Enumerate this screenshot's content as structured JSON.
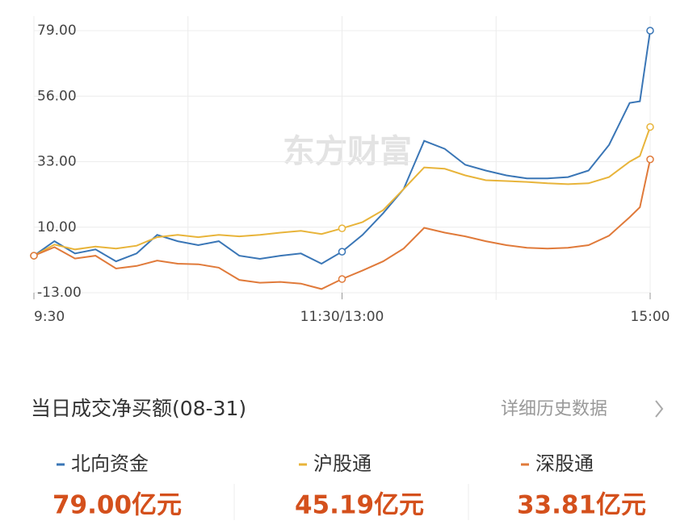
{
  "chart_data": {
    "type": "line",
    "watermark": "东方财富",
    "x": [
      0,
      8,
      16,
      24,
      32,
      40,
      48,
      56,
      64,
      72,
      80,
      88,
      96,
      104,
      112,
      120,
      128,
      136,
      144,
      152,
      160,
      168,
      176,
      184,
      192,
      200,
      208,
      216,
      224,
      232,
      236,
      240
    ],
    "xlim": [
      0,
      240
    ],
    "xticks": [
      {
        "value": 0,
        "label": "9:30"
      },
      {
        "value": 120,
        "label": "11:30/13:00"
      },
      {
        "value": 240,
        "label": "15:00"
      }
    ],
    "ylim": [
      -13,
      79
    ],
    "yticks": [
      {
        "value": 79,
        "label": "79.00"
      },
      {
        "value": 56,
        "label": "56.00"
      },
      {
        "value": 33,
        "label": "33.00"
      },
      {
        "value": 10,
        "label": "10.00"
      },
      {
        "value": -13,
        "label": "-13.00"
      }
    ],
    "grid": true,
    "series": [
      {
        "name": "北向资金",
        "color": "#3a76b6",
        "value_label": "79.00亿元",
        "values": [
          0,
          5.1,
          0.8,
          2.2,
          -2,
          0.8,
          7.3,
          5.1,
          3.7,
          5.1,
          0,
          -1.1,
          0,
          0.8,
          -2.8,
          1.4,
          7.3,
          14.9,
          23.4,
          40.3,
          37.5,
          31.9,
          29.9,
          28.2,
          27.1,
          27.1,
          27.6,
          29.9,
          38.9,
          53.6,
          54.2,
          79.0
        ]
      },
      {
        "name": "沪股通",
        "color": "#e8b43a",
        "value_label": "45.19亿元",
        "values": [
          0,
          3.9,
          2.2,
          3.2,
          2.5,
          3.5,
          6.5,
          7.3,
          6.5,
          7.3,
          6.8,
          7.3,
          8.1,
          8.7,
          7.6,
          9.6,
          11.8,
          16,
          23.4,
          31.0,
          30.5,
          28.2,
          26.5,
          26.2,
          25.9,
          25.4,
          25.1,
          25.4,
          27.6,
          33.0,
          35.0,
          45.19
        ]
      },
      {
        "name": "深股通",
        "color": "#e07a3a",
        "value_label": "33.81亿元",
        "values": [
          0,
          3.0,
          -1,
          0,
          -4.5,
          -3.6,
          -1.7,
          -2.8,
          -3,
          -4.2,
          -8.5,
          -9.5,
          -9.2,
          -9.8,
          -11.7,
          -8.2,
          -5.2,
          -2,
          2.5,
          9.8,
          8.1,
          6.8,
          5.1,
          3.7,
          2.8,
          2.5,
          2.8,
          3.7,
          7.0,
          13.5,
          17.0,
          33.81
        ]
      }
    ]
  },
  "footer": {
    "title": "当日成交净买额(08-31)",
    "link": "详细历史数据"
  }
}
